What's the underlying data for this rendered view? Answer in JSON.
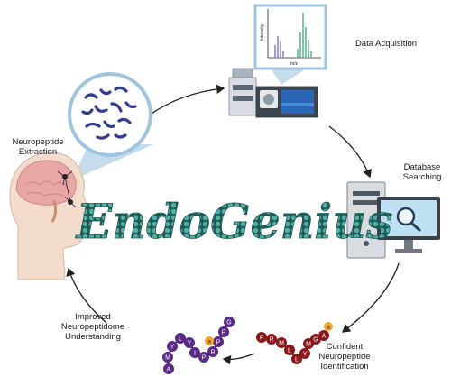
{
  "title": "EndoGenius",
  "stages": {
    "extraction": [
      "Neuropeptide",
      "Extraction"
    ],
    "acquisition": [
      "Data Acquisition"
    ],
    "searching": [
      "Database",
      "Searching"
    ],
    "identification": [
      "Confident",
      "Neuropeptide",
      "Identification"
    ],
    "understanding": [
      "Improved",
      "Neuropeptidome",
      "Understanding"
    ]
  },
  "spectrum": {
    "ylabel": "Intensity",
    "xlabel": "m/z"
  },
  "peptide_left": {
    "letters": [
      "A",
      "M",
      "Y",
      "L",
      "Y",
      "I",
      "P",
      "R",
      "P",
      "P",
      "G"
    ],
    "tag": "a"
  },
  "peptide_right": {
    "letters": [
      "F",
      "R",
      "M",
      "L",
      "L",
      "Y",
      "M",
      "G",
      "A"
    ],
    "tag": "a"
  },
  "colors": {
    "arrow": "#222222",
    "title_teal": "#4fb0a3",
    "title_dark": "#1f5a57",
    "peptide_left": "#5b2a86",
    "peptide_right": "#8a1a1a",
    "tag_orange": "#f4a52a",
    "brain": "#e9a6a6",
    "skin": "#f3dccb",
    "callout": "#bcd6ea"
  }
}
